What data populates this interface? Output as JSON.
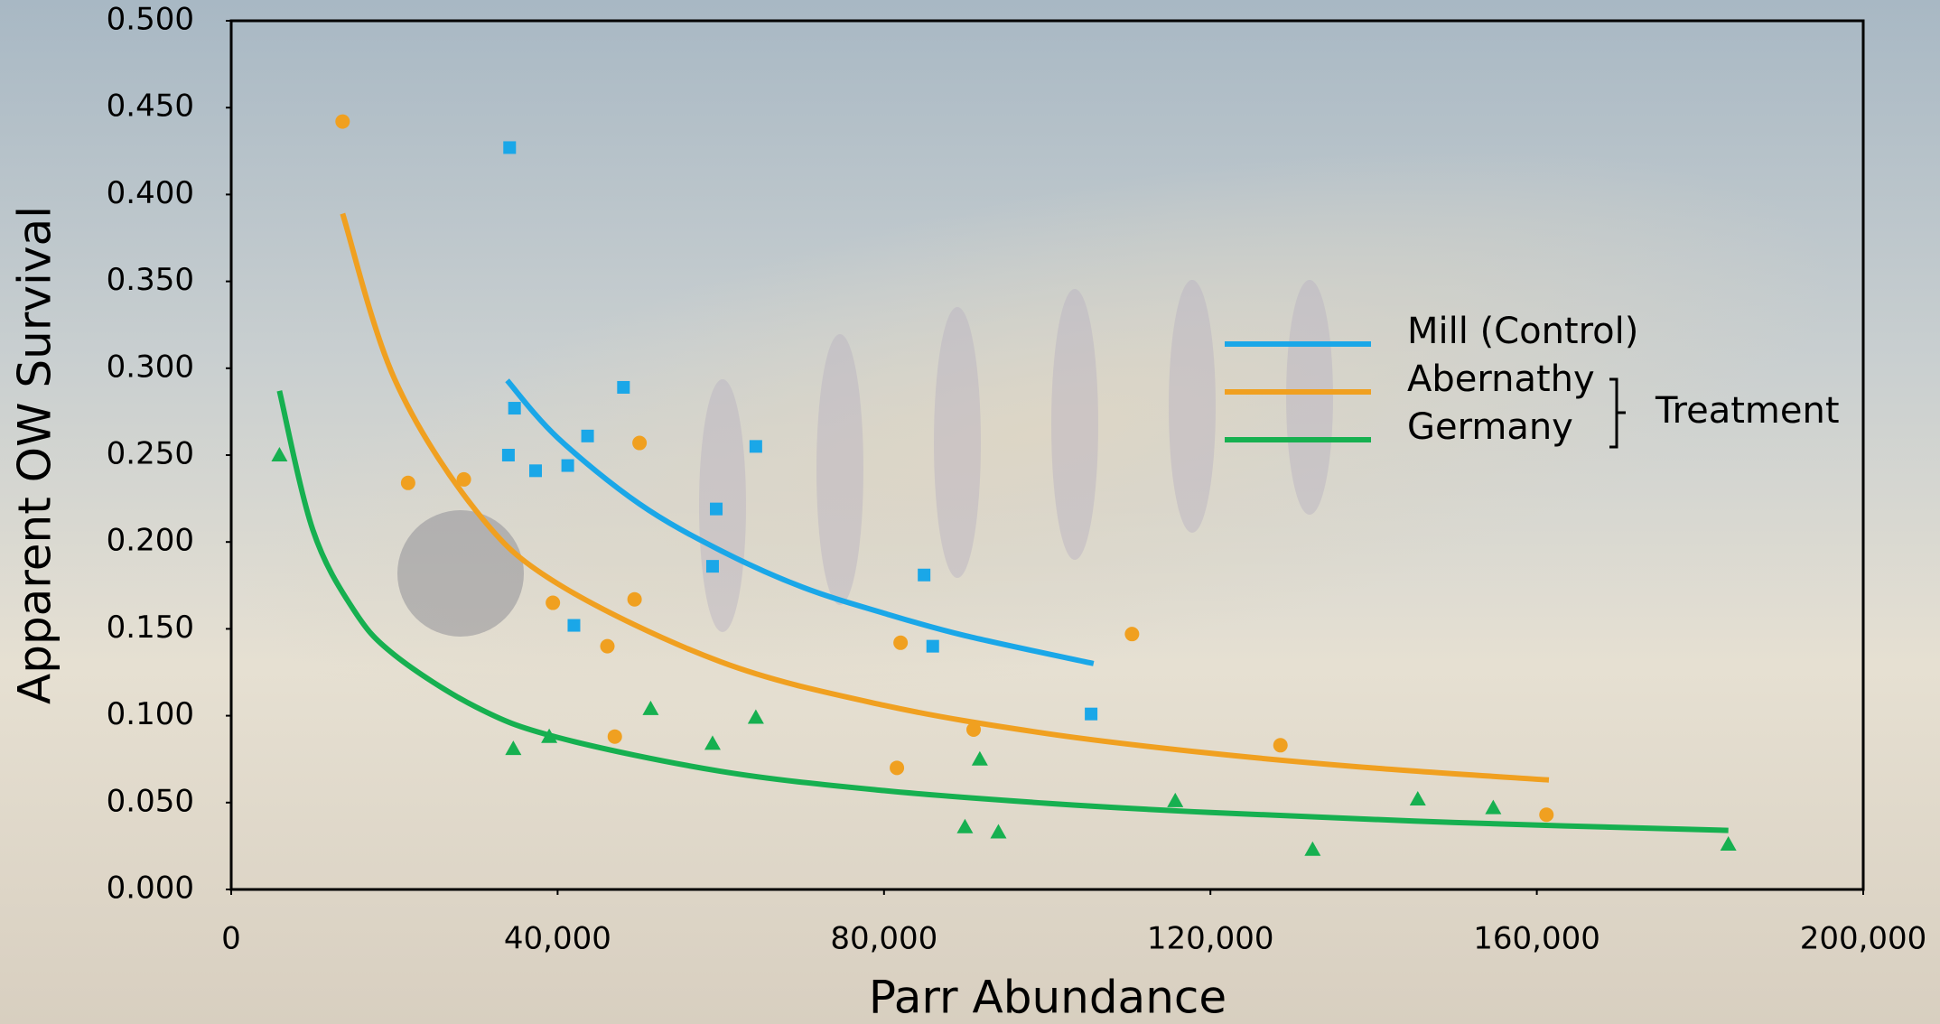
{
  "chart_data": {
    "type": "scatter",
    "x_label": "Parr Abundance",
    "y_label": "Apparent OW Survival",
    "xlim": [
      0,
      200000
    ],
    "ylim": [
      0,
      0.5
    ],
    "xticks": [
      0,
      {
        "value": 40000,
        "label": "40,000"
      },
      {
        "value": 80000,
        "label": "80,000"
      },
      {
        "value": 120000,
        "label": "120,000"
      },
      {
        "value": 160000,
        "label": "160,000"
      },
      {
        "value": 200000,
        "label": "200,000"
      }
    ],
    "yticks": [
      {
        "value": 0,
        "label": "0.000"
      },
      {
        "value": 0.05,
        "label": "0.050"
      },
      {
        "value": 0.1,
        "label": "0.100"
      },
      {
        "value": 0.15,
        "label": "0.150"
      },
      {
        "value": 0.2,
        "label": "0.200"
      },
      {
        "value": 0.25,
        "label": "0.250"
      },
      {
        "value": 0.3,
        "label": "0.300"
      },
      {
        "value": 0.35,
        "label": "0.350"
      },
      {
        "value": 0.4,
        "label": "0.400"
      },
      {
        "value": 0.45,
        "label": "0.450"
      },
      {
        "value": 0.5,
        "label": "0.500"
      }
    ],
    "legend_group_label": "Treatment",
    "series": [
      {
        "name": "Mill (Control)",
        "color": "#1aa7e8",
        "marker": "square",
        "x": [
          34120,
          34720,
          48070,
          43670,
          33970,
          37300,
          41240,
          64290,
          59440,
          58990,
          84910,
          85970,
          42000,
          105380
        ],
        "values": [
          0.427,
          0.277,
          0.289,
          0.261,
          0.25,
          0.241,
          0.244,
          0.255,
          0.219,
          0.186,
          0.181,
          0.14,
          0.152,
          0.101
        ],
        "trend": {
          "x": [
            33820,
            40000,
            50000,
            60000,
            70000,
            80000,
            90000,
            105680
          ],
          "values": [
            0.293,
            0.26,
            0.222,
            0.195,
            0.174,
            0.159,
            0.146,
            0.13
          ]
        }
      },
      {
        "name": "Abernathy",
        "color": "#f0a020",
        "marker": "circle",
        "x": [
          13650,
          21680,
          28510,
          50040,
          39420,
          49430,
          46100,
          47010,
          82030,
          110390,
          90980,
          81580,
          128580,
          161180
        ],
        "values": [
          0.442,
          0.234,
          0.236,
          0.257,
          0.165,
          0.167,
          0.14,
          0.088,
          0.142,
          0.147,
          0.092,
          0.07,
          0.083,
          0.043
        ],
        "trend": {
          "x": [
            13650,
            20000,
            30000,
            40000,
            60000,
            80000,
            100000,
            120000,
            140000,
            161480
          ],
          "values": [
            0.389,
            0.294,
            0.218,
            0.176,
            0.131,
            0.106,
            0.0897,
            0.0784,
            0.0699,
            0.063
          ]
        }
      },
      {
        "name": "Germany",
        "color": "#16b050",
        "marker": "triangle",
        "x": [
          5910,
          34570,
          38970,
          51400,
          58990,
          64290,
          89920,
          94020,
          91740,
          115690,
          132520,
          145410,
          154660,
          183470
        ],
        "values": [
          0.25,
          0.081,
          0.088,
          0.104,
          0.084,
          0.099,
          0.036,
          0.033,
          0.075,
          0.051,
          0.023,
          0.052,
          0.047,
          0.026
        ],
        "trend": {
          "x": [
            5910,
            10000,
            15000,
            20000,
            30000,
            40000,
            60000,
            80000,
            100000,
            120000,
            150000,
            183470
          ],
          "values": [
            0.287,
            0.207,
            0.161,
            0.135,
            0.105,
            0.0875,
            0.068,
            0.0569,
            0.0496,
            0.0443,
            0.0385,
            0.034
          ]
        }
      }
    ]
  }
}
